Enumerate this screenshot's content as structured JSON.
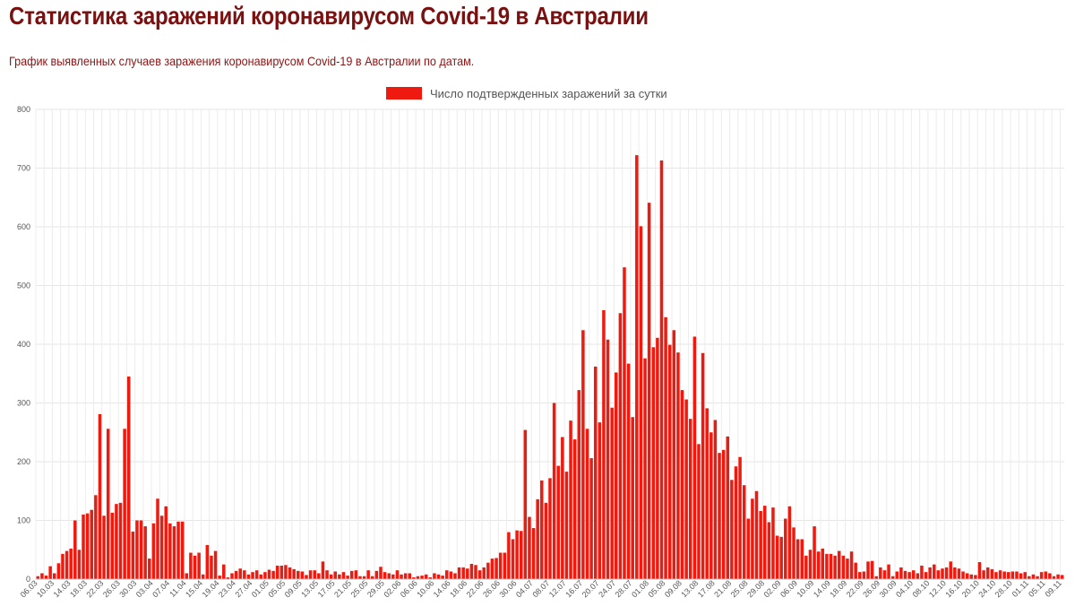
{
  "page": {
    "title": "Статистика заражений коронавирусом Covid-19 в Австралии",
    "subtitle": "График выявленных случаев заражения коронавирусом Covid-19 в Австралии по датам."
  },
  "colors": {
    "bar": "#ee1a0f",
    "title": "#7a1010",
    "grid": "#e6e6e6"
  },
  "chart_data": {
    "type": "bar",
    "legend": "Число подтвержденных заражений за сутки",
    "legend_position": "top-center",
    "grid": true,
    "ylim": [
      0,
      800
    ],
    "yticks": [
      0,
      100,
      200,
      300,
      400,
      500,
      600,
      700,
      800
    ],
    "start_date": "06.03",
    "xtick_labels": [
      "06.03",
      "10.03",
      "14.03",
      "18.03",
      "22.03",
      "26.03",
      "30.03",
      "03.04",
      "07.04",
      "11.04",
      "15.04",
      "19.04",
      "23.04",
      "27.04",
      "01.05",
      "05.05",
      "09.05",
      "13.05",
      "17.05",
      "21.05",
      "25.05",
      "29.05",
      "02.06",
      "06.06",
      "10.06",
      "14.06",
      "18.06",
      "22.06",
      "26.06",
      "30.06",
      "04.07",
      "08.07",
      "12.07",
      "16.07",
      "20.07",
      "24.07",
      "28.07",
      "01.08",
      "05.08",
      "09.08",
      "13.08",
      "17.08",
      "21.08",
      "25.08",
      "29.08",
      "02.09",
      "06.09",
      "10.09",
      "14.09",
      "18.09",
      "22.09",
      "26.09",
      "30.09",
      "04.10",
      "08.10",
      "12.10",
      "16.10",
      "20.10",
      "24.10",
      "28.10",
      "01.11",
      "05.11",
      "09.11"
    ],
    "values": [
      5,
      10,
      6,
      22,
      10,
      27,
      43,
      48,
      52,
      100,
      50,
      110,
      112,
      118,
      143,
      281,
      108,
      256,
      113,
      128,
      130,
      256,
      345,
      81,
      100,
      100,
      90,
      35,
      95,
      137,
      108,
      124,
      95,
      90,
      98,
      98,
      10,
      45,
      40,
      45,
      8,
      58,
      40,
      48,
      6,
      25,
      3,
      10,
      14,
      18,
      15,
      8,
      12,
      15,
      8,
      12,
      16,
      14,
      23,
      23,
      24,
      20,
      17,
      14,
      13,
      7,
      15,
      15,
      10,
      30,
      15,
      8,
      13,
      8,
      12,
      6,
      14,
      15,
      5,
      5,
      15,
      5,
      14,
      21,
      12,
      10,
      8,
      15,
      8,
      10,
      10,
      3,
      5,
      6,
      8,
      3,
      10,
      8,
      6,
      15,
      13,
      10,
      20,
      20,
      18,
      26,
      24,
      15,
      20,
      28,
      35,
      36,
      45,
      45,
      80,
      68,
      83,
      82,
      254,
      106,
      87,
      136,
      168,
      130,
      172,
      300,
      193,
      242,
      183,
      270,
      238,
      322,
      424,
      256,
      206,
      362,
      267,
      458,
      408,
      292,
      352,
      453,
      531,
      367,
      276,
      722,
      601,
      376,
      641,
      395,
      411,
      713,
      446,
      399,
      424,
      386,
      322,
      306,
      273,
      413,
      230,
      385,
      291,
      250,
      271,
      215,
      220,
      243,
      169,
      192,
      208,
      160,
      103,
      137,
      150,
      116,
      125,
      97,
      122,
      74,
      72,
      103,
      124,
      88,
      68,
      68,
      40,
      50,
      90,
      47,
      52,
      43,
      43,
      40,
      48,
      40,
      35,
      47,
      28,
      12,
      13,
      30,
      31,
      5,
      20,
      15,
      25,
      5,
      13,
      20,
      14,
      12,
      15,
      10,
      23,
      12,
      20,
      25,
      15,
      18,
      20,
      30,
      20,
      18,
      13,
      10,
      8,
      7,
      29,
      15,
      20,
      17,
      12,
      15,
      13,
      12,
      13,
      13,
      10,
      12,
      5,
      8,
      5,
      12,
      13,
      10,
      5,
      8,
      7
    ]
  }
}
